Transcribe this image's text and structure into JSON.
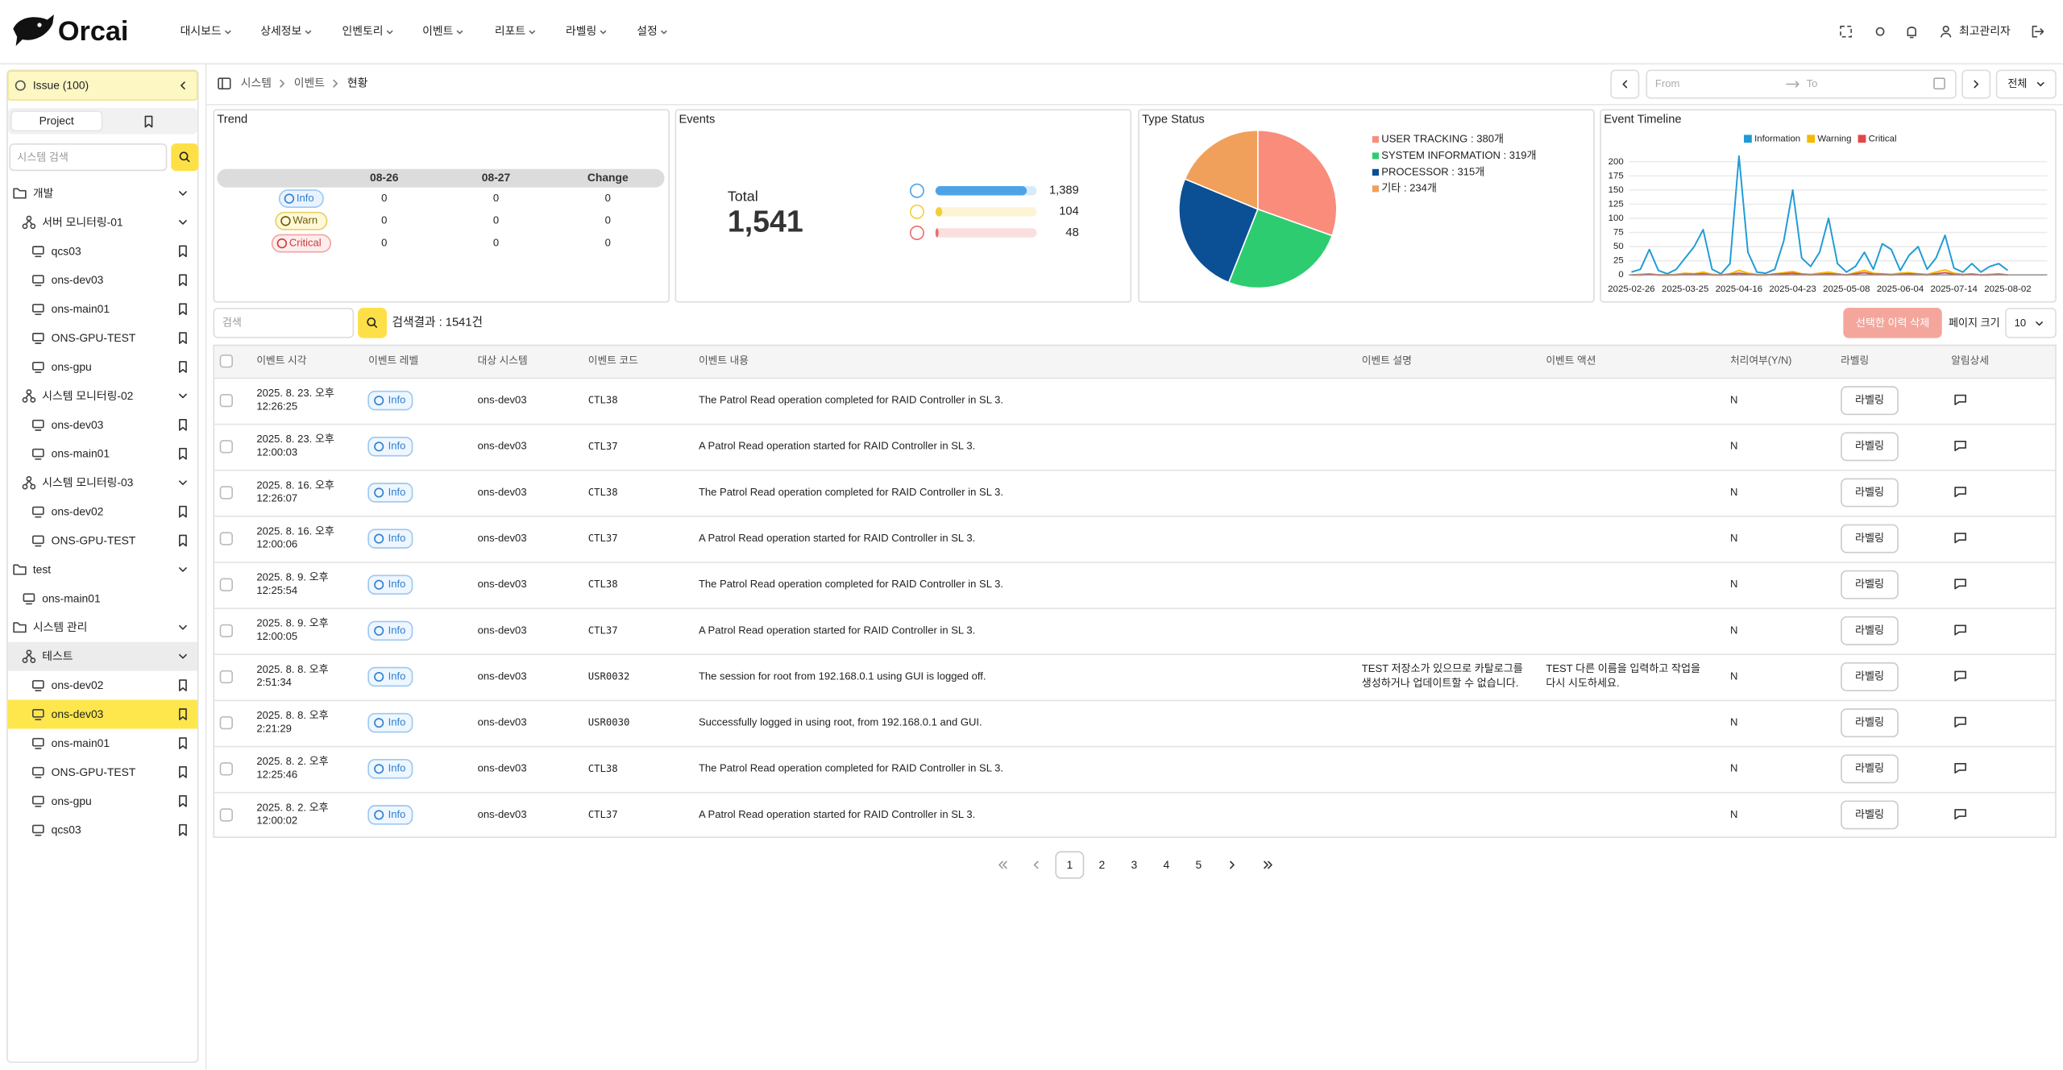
{
  "header": {
    "logo": "Orcai",
    "nav": [
      "대시보드",
      "상세정보",
      "인벤토리",
      "이벤트",
      "리포트",
      "라벨링",
      "설정"
    ],
    "user": "최고관리자"
  },
  "sidebar": {
    "issue": "Issue (100)",
    "tab": "Project",
    "search_placeholder": "시스템 검색",
    "tree": [
      {
        "label": "개발",
        "children": [
          {
            "label": "서버 모니터링-01",
            "children": [
              {
                "label": "qcs03"
              },
              {
                "label": "ons-dev03"
              },
              {
                "label": "ons-main01"
              },
              {
                "label": "ONS-GPU-TEST"
              },
              {
                "label": "ons-gpu"
              }
            ]
          },
          {
            "label": "시스템 모니터링-02",
            "children": [
              {
                "label": "ons-dev03"
              },
              {
                "label": "ons-main01"
              }
            ]
          },
          {
            "label": "시스템 모니터링-03",
            "children": [
              {
                "label": "ons-dev02"
              },
              {
                "label": "ONS-GPU-TEST"
              }
            ]
          }
        ]
      },
      {
        "label": "test",
        "children": [
          {
            "label": "ons-main01"
          }
        ]
      },
      {
        "label": "시스템 관리",
        "children": [
          {
            "label": "테스트",
            "active": true,
            "children": [
              {
                "label": "ons-dev02"
              },
              {
                "label": "ons-dev03",
                "selected": true
              },
              {
                "label": "ons-main01"
              },
              {
                "label": "ONS-GPU-TEST"
              },
              {
                "label": "ons-gpu"
              },
              {
                "label": "qcs03"
              }
            ]
          }
        ]
      }
    ]
  },
  "breadcrumb": [
    "시스템",
    "이벤트",
    "현황"
  ],
  "filter": {
    "from": "From",
    "to": "To",
    "scope": "전체"
  },
  "dashboard": {
    "trend": {
      "title": "Trend",
      "columns": [
        "08-26",
        "08-27",
        "Change"
      ],
      "rows": [
        {
          "level": "Info",
          "values": [
            "0",
            "0",
            "0"
          ]
        },
        {
          "level": "Warn",
          "values": [
            "0",
            "0",
            "0"
          ]
        },
        {
          "level": "Critical",
          "values": [
            "0",
            "0",
            "0"
          ]
        }
      ]
    },
    "events": {
      "title": "Events",
      "total_label": "Total",
      "total": {
        "value": 1541,
        "label": "1,541"
      },
      "items": [
        {
          "value": 1389,
          "label": "1,389",
          "color": "#4ea3e6"
        },
        {
          "value": 104,
          "label": "104",
          "color": "#f2cf3a"
        },
        {
          "value": 48,
          "label": "48",
          "color": "#ec6f6f"
        }
      ]
    },
    "type_status": {
      "type": "pie",
      "title": "Type Status",
      "slices": [
        {
          "label": "USER TRACKING : 380개",
          "value": 380,
          "color": "#fa8c7c"
        },
        {
          "label": "SYSTEM INFORMATION : 319개",
          "value": 319,
          "color": "#2ecc71"
        },
        {
          "label": "PROCESSOR : 315개",
          "value": 315,
          "color": "#0b4f94"
        },
        {
          "label": "기타 : 234개",
          "value": 234,
          "color": "#f0a05a"
        }
      ]
    },
    "timeline": {
      "type": "line",
      "title": "Event Timeline",
      "categories": [
        "2025-02-26",
        null,
        null,
        null,
        null,
        null,
        "2025-03-25",
        null,
        null,
        null,
        null,
        null,
        "2025-04-16",
        null,
        null,
        null,
        null,
        null,
        "2025-04-23",
        null,
        null,
        null,
        null,
        null,
        "2025-05-08",
        null,
        null,
        null,
        null,
        null,
        "2025-06-04",
        null,
        null,
        null,
        null,
        null,
        "2025-07-14",
        null,
        null,
        null,
        null,
        null,
        "2025-08-02"
      ],
      "series": [
        {
          "name": "Information",
          "color": "#1f9bd6",
          "values": [
            5,
            10,
            45,
            8,
            2,
            10,
            30,
            50,
            80,
            10,
            2,
            20,
            210,
            40,
            5,
            3,
            10,
            60,
            150,
            30,
            15,
            40,
            100,
            20,
            5,
            15,
            40,
            10,
            55,
            45,
            8,
            35,
            50,
            10,
            30,
            70,
            12,
            5,
            20,
            5,
            15,
            20,
            8
          ]
        },
        {
          "name": "Warning",
          "color": "#f5b700",
          "values": [
            0,
            1,
            2,
            0,
            0,
            1,
            3,
            2,
            5,
            1,
            0,
            2,
            8,
            3,
            1,
            0,
            2,
            4,
            6,
            2,
            1,
            3,
            5,
            2,
            0,
            4,
            8,
            3,
            2,
            1,
            3,
            4,
            2,
            1,
            5,
            9,
            3,
            1,
            2,
            0,
            1,
            2,
            0
          ]
        },
        {
          "name": "Critical",
          "color": "#e04848",
          "values": [
            0,
            0,
            1,
            0,
            0,
            0,
            1,
            1,
            2,
            0,
            0,
            1,
            3,
            1,
            0,
            0,
            1,
            2,
            3,
            1,
            0,
            1,
            2,
            1,
            0,
            2,
            4,
            1,
            1,
            0,
            1,
            2,
            1,
            0,
            2,
            4,
            1,
            0,
            1,
            0,
            0,
            1,
            0
          ]
        }
      ],
      "ylim": [
        0,
        215
      ],
      "yticks": [
        0,
        25,
        50,
        75,
        100,
        125,
        150,
        175,
        200
      ],
      "grid": true
    }
  },
  "search": {
    "placeholder": "검색",
    "result": "검색결과 : 1541건",
    "delete": "선택한 이력 삭제",
    "page_size_label": "페이지 크기",
    "page_size": "10"
  },
  "table": {
    "columns": [
      "이벤트 시각",
      "이벤트 레벨",
      "대상 시스템",
      "이벤트 코드",
      "이벤트 내용",
      "이벤트 설명",
      "이벤트 액션",
      "처리여부(Y/N)",
      "라벨링",
      "알림상세"
    ],
    "rows": [
      {
        "time": "2025. 8. 23. 오후 12:26:25",
        "level": "Info",
        "system": "ons-dev03",
        "code": "CTL38",
        "content": "The Patrol Read operation completed for RAID Controller in SL 3.",
        "processed": "N",
        "labeling": "라벨링"
      },
      {
        "time": "2025. 8. 23. 오후 12:00:03",
        "level": "Info",
        "system": "ons-dev03",
        "code": "CTL37",
        "content": "A Patrol Read operation started for RAID Controller in SL 3.",
        "processed": "N",
        "labeling": "라벨링"
      },
      {
        "time": "2025. 8. 16. 오후 12:26:07",
        "level": "Info",
        "system": "ons-dev03",
        "code": "CTL38",
        "content": "The Patrol Read operation completed for RAID Controller in SL 3.",
        "processed": "N",
        "labeling": "라벨링"
      },
      {
        "time": "2025. 8. 16. 오후 12:00:06",
        "level": "Info",
        "system": "ons-dev03",
        "code": "CTL37",
        "content": "A Patrol Read operation started for RAID Controller in SL 3.",
        "processed": "N",
        "labeling": "라벨링"
      },
      {
        "time": "2025. 8. 9. 오후 12:25:54",
        "level": "Info",
        "system": "ons-dev03",
        "code": "CTL38",
        "content": "The Patrol Read operation completed for RAID Controller in SL 3.",
        "processed": "N",
        "labeling": "라벨링"
      },
      {
        "time": "2025. 8. 9. 오후 12:00:05",
        "level": "Info",
        "system": "ons-dev03",
        "code": "CTL37",
        "content": "A Patrol Read operation started for RAID Controller in SL 3.",
        "processed": "N",
        "labeling": "라벨링"
      },
      {
        "time": "2025. 8. 8. 오후 2:51:34",
        "level": "Info",
        "system": "ons-dev03",
        "code": "USR0032",
        "content": "The session for root from 192.168.0.1 using GUI is logged off.",
        "description": "TEST 저장소가 있으므로 카탈로그를 생성하거나 업데이트할 수 없습니다.",
        "action": "TEST 다른 이름을 입력하고 작업을 다시 시도하세요.",
        "processed": "N",
        "labeling": "라벨링"
      },
      {
        "time": "2025. 8. 8. 오후 2:21:29",
        "level": "Info",
        "system": "ons-dev03",
        "code": "USR0030",
        "content": "Successfully logged in using root, from 192.168.0.1 and GUI.",
        "processed": "N",
        "labeling": "라벨링"
      },
      {
        "time": "2025. 8. 2. 오후 12:25:46",
        "level": "Info",
        "system": "ons-dev03",
        "code": "CTL38",
        "content": "The Patrol Read operation completed for RAID Controller in SL 3.",
        "processed": "N",
        "labeling": "라벨링"
      },
      {
        "time": "2025. 8. 2. 오후 12:00:02",
        "level": "Info",
        "system": "ons-dev03",
        "code": "CTL37",
        "content": "A Patrol Read operation started for RAID Controller in SL 3.",
        "processed": "N",
        "labeling": "라벨링"
      }
    ]
  },
  "pagination": {
    "pages": [
      "1",
      "2",
      "3",
      "4",
      "5"
    ],
    "current": "1"
  }
}
